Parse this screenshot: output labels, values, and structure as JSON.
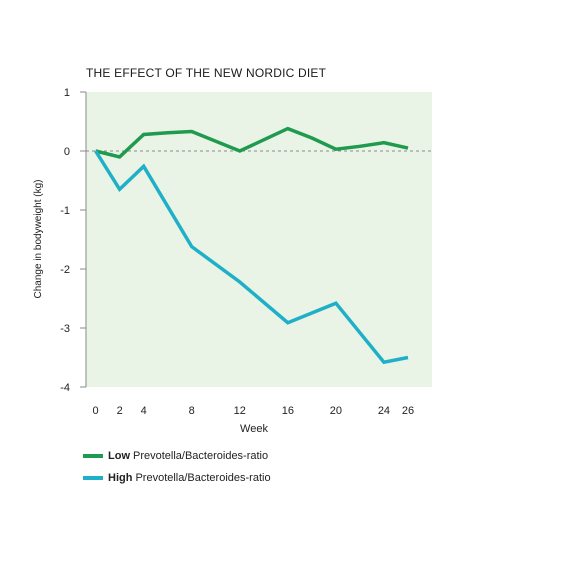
{
  "chart_data": {
    "type": "line",
    "title": "THE EFFECT OF THE NEW NORDIC DIET",
    "xlabel": "Week",
    "ylabel": "Change in bodyweight (kg)",
    "xlim": [
      -0.8,
      28
    ],
    "ylim": [
      -4,
      1
    ],
    "x_ticks": [
      0,
      2,
      4,
      8,
      12,
      16,
      20,
      24,
      26
    ],
    "y_ticks": [
      1,
      0,
      -1,
      -2,
      -3,
      -4
    ],
    "reference_line": 0,
    "background_color": "#e9f4e6",
    "series": [
      {
        "name_bold": "Low",
        "name_rest": "Prevotella/Bacteroides-ratio",
        "color": "#1f9a4e",
        "x": [
          0,
          2,
          4,
          6,
          8,
          12,
          16,
          18,
          20,
          22,
          24,
          26
        ],
        "y": [
          0,
          -0.1,
          0.28,
          0.31,
          0.33,
          0.0,
          0.38,
          0.22,
          0.03,
          0.08,
          0.14,
          0.05
        ]
      },
      {
        "name_bold": "High",
        "name_rest": "Prevotella/Bacteroides-ratio",
        "color": "#1fb0c8",
        "x": [
          0,
          2,
          4,
          8,
          12,
          16,
          20,
          24,
          26
        ],
        "y": [
          0,
          -0.65,
          -0.26,
          -1.62,
          -2.22,
          -2.91,
          -2.58,
          -3.58,
          -3.5
        ]
      }
    ]
  }
}
